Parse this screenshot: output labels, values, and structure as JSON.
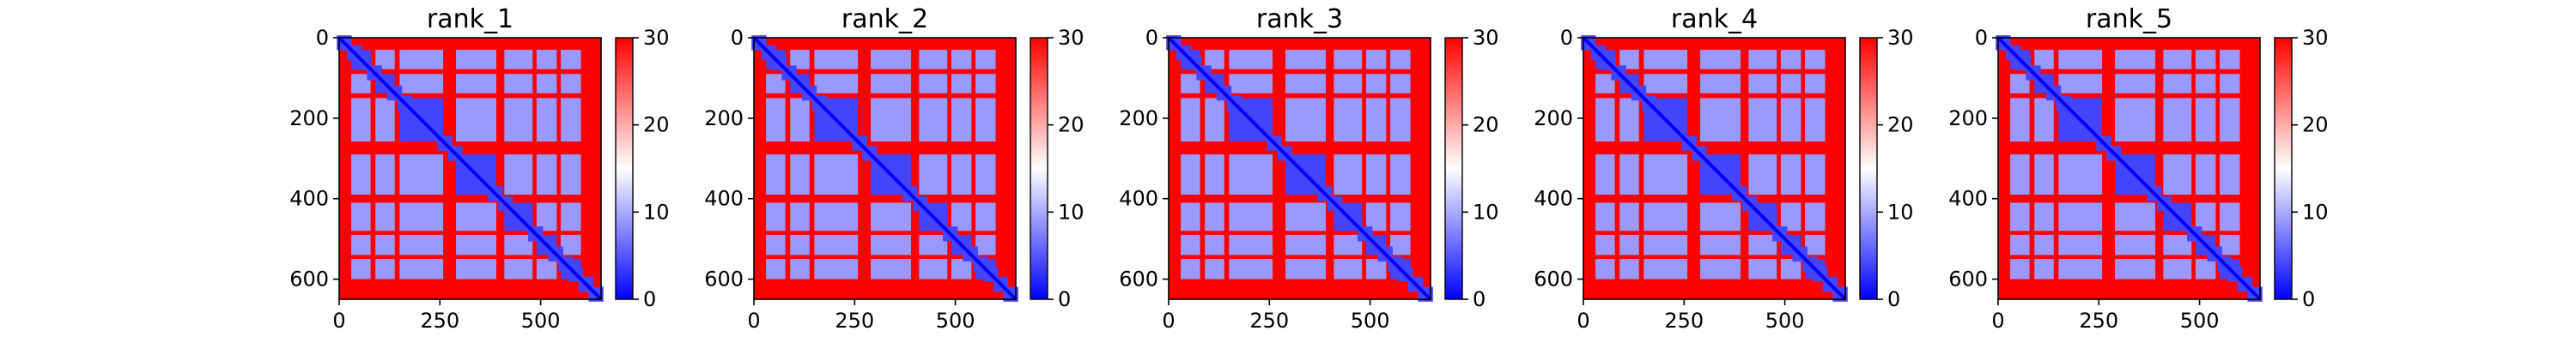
{
  "chart_data": {
    "type": "heatmap",
    "matrix_size": 650,
    "colormap": {
      "name": "bwr",
      "low": "#0000ff",
      "mid": "#ffffff",
      "high": "#ff0000",
      "vmin": 0,
      "vmax": 30
    },
    "panels": [
      {
        "title": "rank_1"
      },
      {
        "title": "rank_2"
      },
      {
        "title": "rank_3"
      },
      {
        "title": "rank_4"
      },
      {
        "title": "rank_5"
      }
    ],
    "xticks": [
      0,
      250,
      500
    ],
    "yticks": [
      0,
      200,
      400,
      600
    ],
    "xlim": [
      0,
      650
    ],
    "ylim": [
      650,
      0
    ],
    "colorbar_ticks": [
      0,
      10,
      20,
      30
    ],
    "domain_bounds": [
      [
        30,
        78
      ],
      [
        90,
        138
      ],
      [
        150,
        258
      ],
      [
        290,
        390
      ],
      [
        410,
        480
      ],
      [
        490,
        540
      ],
      [
        550,
        600
      ]
    ],
    "domain_values": {
      "diagonal_block": 4,
      "off_diagonal_block": 9,
      "linker_row": 26,
      "outside": 30
    }
  }
}
